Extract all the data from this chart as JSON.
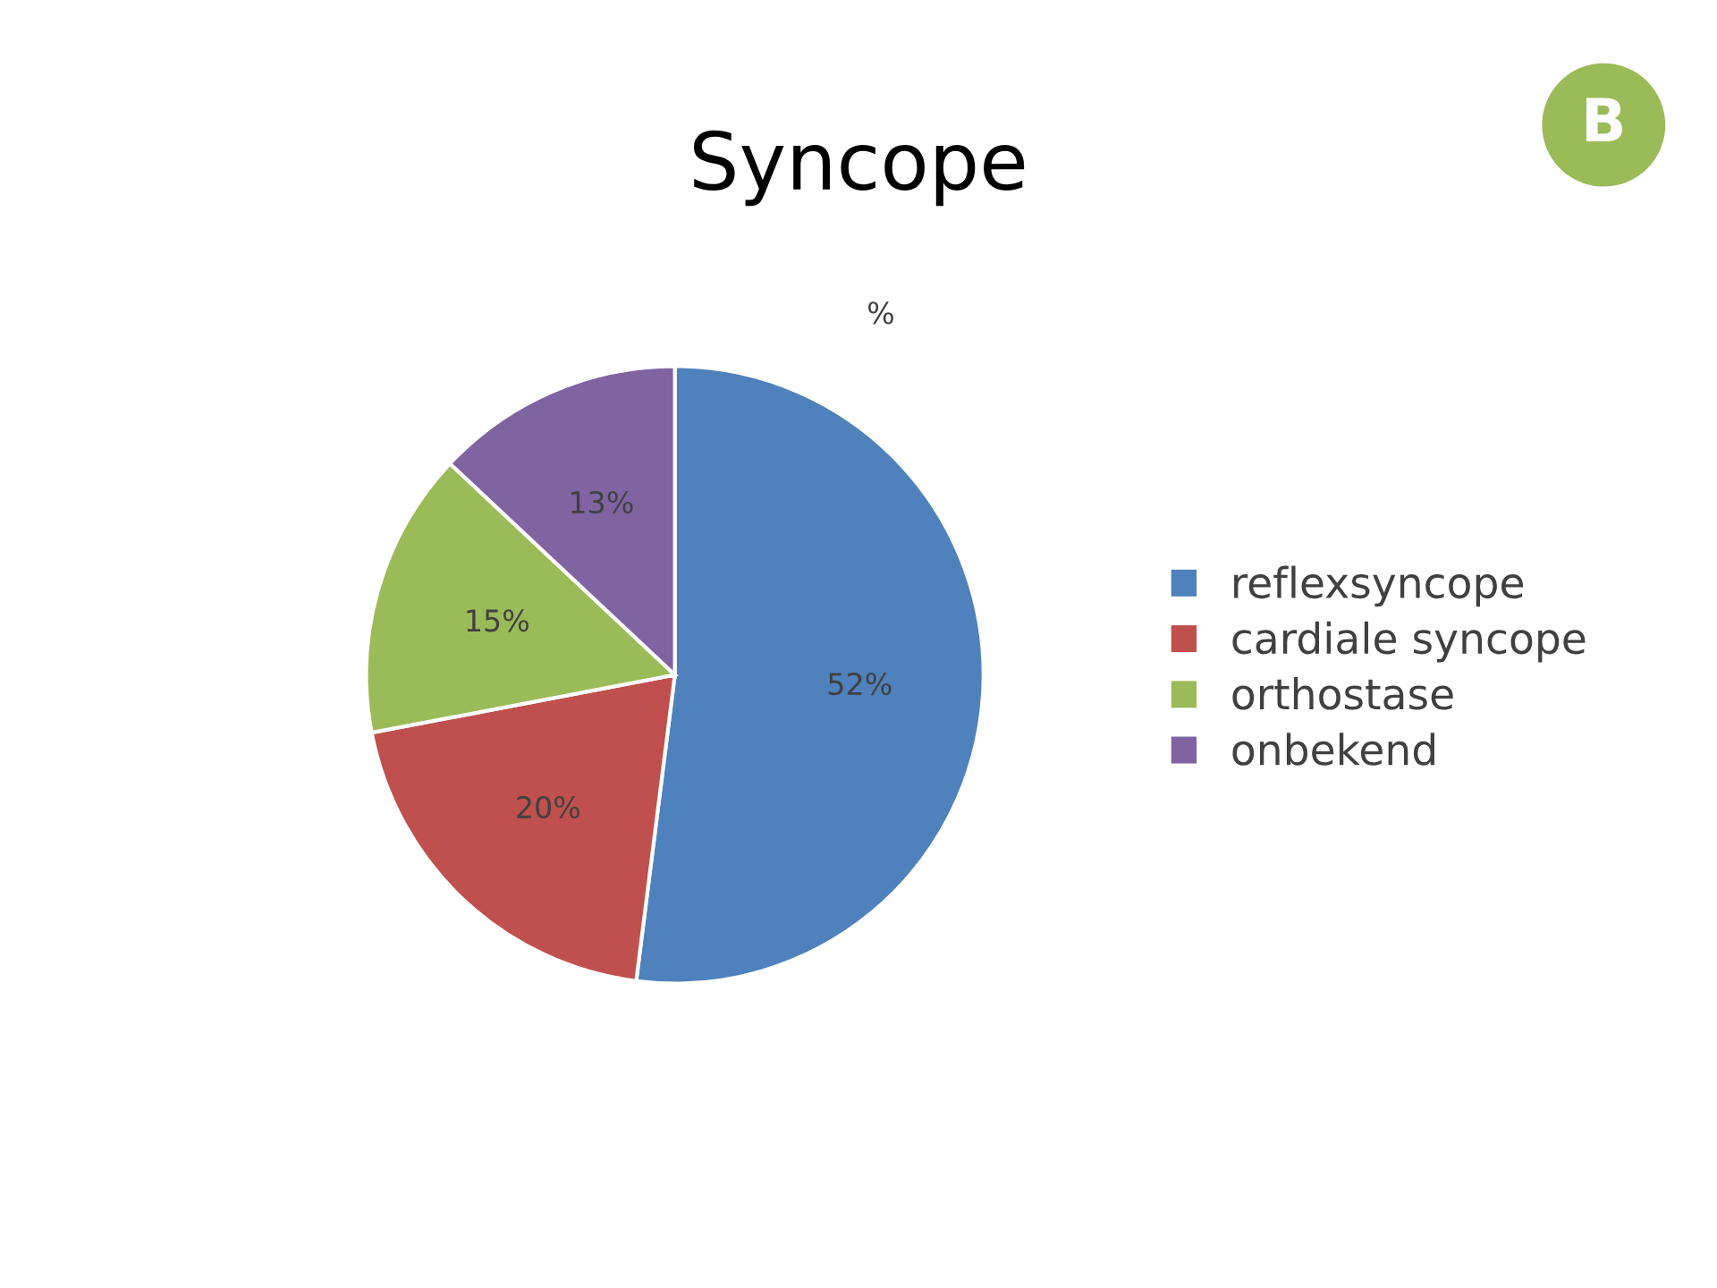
{
  "chart_data": {
    "type": "pie",
    "title": "Syncope",
    "subtitle": "%",
    "categories": [
      "reflexsyncope",
      "cardiale syncope",
      "orthostase",
      "onbekend"
    ],
    "values": [
      52,
      20,
      15,
      13
    ],
    "colors": [
      "#4f81bd",
      "#c0504d",
      "#9bbb59",
      "#8064a2"
    ],
    "value_labels": [
      "52%",
      "20%",
      "15%",
      "13%"
    ],
    "annotations": [
      "B"
    ],
    "legend": "right"
  }
}
